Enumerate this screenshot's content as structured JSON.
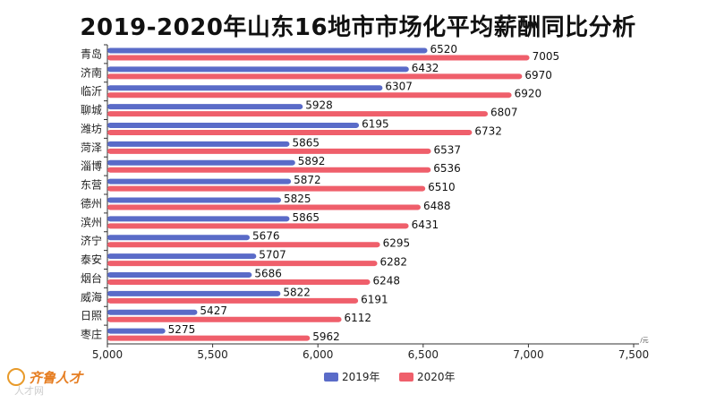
{
  "chart_data": {
    "type": "bar",
    "orientation": "horizontal",
    "title": "2019-2020年山东16地市市场化平均薪酬同比分析",
    "categories": [
      "青岛",
      "济南",
      "临沂",
      "聊城",
      "潍坊",
      "菏泽",
      "淄博",
      "东营",
      "德州",
      "滨州",
      "济宁",
      "泰安",
      "烟台",
      "威海",
      "日照",
      "枣庄"
    ],
    "series": [
      {
        "name": "2019年",
        "color": "#5a6bc8",
        "values": [
          6520,
          6432,
          6307,
          5928,
          6195,
          5865,
          5892,
          5872,
          5825,
          5865,
          5676,
          5707,
          5686,
          5822,
          5427,
          5275
        ]
      },
      {
        "name": "2020年",
        "color": "#ef5f6b",
        "values": [
          7005,
          6970,
          6920,
          6807,
          6732,
          6537,
          6536,
          6510,
          6488,
          6431,
          6295,
          6282,
          6248,
          6191,
          6112,
          5962
        ]
      }
    ],
    "xlim": [
      5000,
      7500
    ],
    "xticks": [
      "5,000",
      "5,500",
      "6,000",
      "6,500",
      "7,000",
      "7,500"
    ],
    "xunit": "/元",
    "legend_position": "bottom"
  },
  "watermark": {
    "logo_text": "齐鲁人才",
    "sub_text": "人才网"
  }
}
